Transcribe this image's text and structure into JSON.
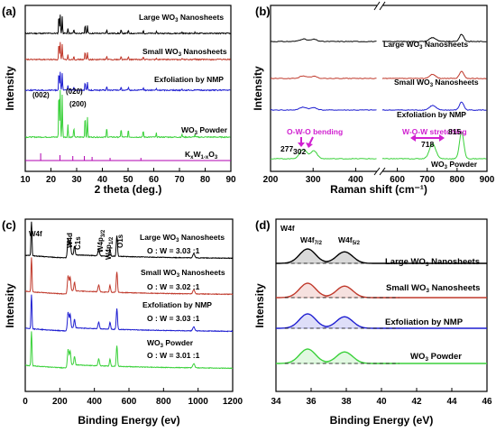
{
  "figure": {
    "panels": [
      {
        "id": "a",
        "label": "(a)",
        "type": "line",
        "xlabel": "2 theta (deg.)",
        "ylabel": "Intensity",
        "xlim": [
          10,
          90
        ],
        "xticks": [
          "10",
          "20",
          "30",
          "40",
          "50",
          "60",
          "70",
          "80",
          "90"
        ],
        "series": [
          {
            "name": "Large WO3 Nanosheets",
            "color": "#000000"
          },
          {
            "name": "Small WO3 Nanosheets",
            "color": "#c0392b"
          },
          {
            "name": "Exfoliation by NMP",
            "color": "#1f1fd1"
          },
          {
            "name": "WO3 Powder",
            "color": "#3ad13a"
          },
          {
            "name": "KxW1-xO3",
            "color": "#b000b0"
          }
        ],
        "annotations": [
          "(002)",
          "(020)",
          "(200)"
        ]
      },
      {
        "id": "b",
        "label": "(b)",
        "type": "line",
        "xlabel": "Raman shift (cm⁻¹)",
        "ylabel": "Intensity",
        "xlim_left": [
          200,
          450
        ],
        "xlim_right": [
          550,
          900
        ],
        "xticks": [
          "200",
          "300",
          "400",
          "600",
          "700",
          "800",
          "900"
        ],
        "series": [
          {
            "name": "Large WO3 Nanosheets",
            "color": "#000000"
          },
          {
            "name": "Small WO3 Nanosheets",
            "color": "#c0392b"
          },
          {
            "name": "Exfoliation by NMP",
            "color": "#1f1fd1"
          },
          {
            "name": "WO3 Powder",
            "color": "#3ad13a"
          }
        ],
        "annotations": [
          "O-W-O bending",
          "W-O-W stretching",
          "277",
          "302",
          "718",
          "815"
        ]
      },
      {
        "id": "c",
        "label": "(c)",
        "type": "line",
        "xlabel": "Binding Energy (ev)",
        "ylabel": "Intensity",
        "xlim": [
          0,
          1200
        ],
        "xticks": [
          "0",
          "200",
          "400",
          "600",
          "800",
          "1000",
          "1200"
        ],
        "series": [
          {
            "name": "Large WO3 Nanosheets",
            "color": "#000000",
            "ratio": "O : W = 3.03 :1"
          },
          {
            "name": "Small WO3 Nanosheets",
            "color": "#c0392b",
            "ratio": "O : W = 3.02 :1"
          },
          {
            "name": "Exfoliation by NMP",
            "color": "#1f1fd1",
            "ratio": "O : W = 3.03 :1"
          },
          {
            "name": "WO3 Powder",
            "color": "#3ad13a",
            "ratio": "O : W = 3.01 :1"
          }
        ],
        "annotations": [
          "W4f",
          "W4d",
          "C1s",
          "W4p3/2",
          "W4p1/2",
          "O1s"
        ]
      },
      {
        "id": "d",
        "label": "(d)",
        "type": "line",
        "xlabel": "Binding Energy (eV)",
        "ylabel": "Intensity",
        "xlim": [
          34,
          46
        ],
        "xticks": [
          "34",
          "36",
          "38",
          "40",
          "42",
          "44",
          "46"
        ],
        "series": [
          {
            "name": "Large WO3 Nanosheets",
            "color": "#000000"
          },
          {
            "name": "Small WO3 Nanosheets",
            "color": "#c0392b"
          },
          {
            "name": "Exfoliation by NMP",
            "color": "#1f1fd1"
          },
          {
            "name": "WO3 Powder",
            "color": "#3ad13a"
          }
        ],
        "annotations": [
          "W4f",
          "W4f7/2",
          "W4f5/2"
        ]
      }
    ]
  },
  "chart_data": [
    {
      "type": "line",
      "title": "(a)",
      "xlabel": "2 theta (deg.)",
      "ylabel": "Intensity",
      "xlim": [
        10,
        90
      ],
      "peaks_x": [
        23.1,
        23.6,
        24.4,
        26.6,
        28.9,
        33.3,
        34.2,
        41.7,
        47.3,
        50.1,
        55.9
      ],
      "series": [
        {
          "name": "Large WO3 Nanosheets"
        },
        {
          "name": "Small WO3 Nanosheets"
        },
        {
          "name": "Exfoliation by NMP"
        },
        {
          "name": "WO3 Powder"
        },
        {
          "name": "KxW1-xO3"
        }
      ]
    },
    {
      "type": "line",
      "title": "(b)",
      "xlabel": "Raman shift (cm⁻¹)",
      "ylabel": "Intensity",
      "peaks_x": [
        277,
        302,
        718,
        815
      ],
      "series": [
        {
          "name": "Large WO3 Nanosheets"
        },
        {
          "name": "Small WO3 Nanosheets"
        },
        {
          "name": "Exfoliation by NMP"
        },
        {
          "name": "WO3 Powder"
        }
      ]
    },
    {
      "type": "line",
      "title": "(c)",
      "xlabel": "Binding Energy (ev)",
      "ylabel": "Intensity",
      "xlim": [
        0,
        1200
      ],
      "peaks_x": [
        36,
        248,
        285,
        425,
        530,
        975
      ],
      "series": [
        {
          "name": "Large WO3 Nanosheets",
          "ratio": "O : W = 3.03 :1"
        },
        {
          "name": "Small WO3 Nanosheets",
          "ratio": "O : W = 3.02 :1"
        },
        {
          "name": "Exfoliation by NMP",
          "ratio": "O : W = 3.03 :1"
        },
        {
          "name": "WO3 Powder",
          "ratio": "O : W = 3.01 :1"
        }
      ]
    },
    {
      "type": "line",
      "title": "(d)",
      "xlabel": "Binding Energy (eV)",
      "ylabel": "Intensity",
      "xlim": [
        34,
        46
      ],
      "peaks_x": [
        35.8,
        37.9
      ],
      "series": [
        {
          "name": "Large WO3 Nanosheets"
        },
        {
          "name": "Small WO3 Nanosheets"
        },
        {
          "name": "Exfoliation by NMP"
        },
        {
          "name": "WO3 Powder"
        }
      ]
    }
  ]
}
